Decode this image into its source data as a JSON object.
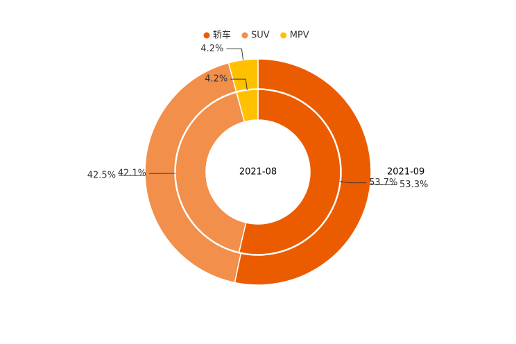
{
  "chart_data": {
    "type": "pie",
    "categories": [
      "轿车",
      "SUV",
      "MPV"
    ],
    "colors": [
      "#eb5c00",
      "#f18f4b",
      "#ffc000"
    ],
    "series": [
      {
        "name": "2021-08",
        "values": [
          53.7,
          42.1,
          4.2
        ],
        "value_labels": [
          "53.7%",
          "42.1%",
          "4.2%"
        ]
      },
      {
        "name": "2021-09",
        "values": [
          53.3,
          42.5,
          4.2
        ],
        "value_labels": [
          "53.3%",
          "42.5%",
          "4.2%"
        ]
      }
    ]
  }
}
